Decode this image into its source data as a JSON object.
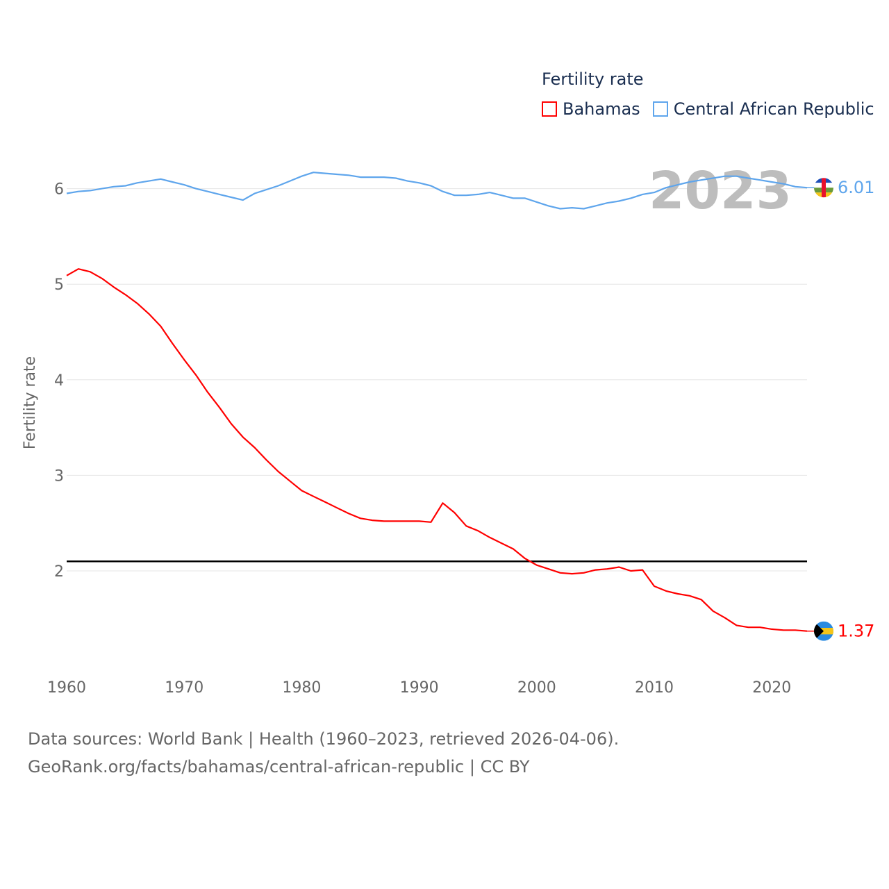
{
  "chart_data": {
    "type": "line",
    "title": "",
    "legend_title": "Fertility rate",
    "legend_position": "top-right",
    "xlabel": "",
    "ylabel": "Fertility rate",
    "xlim": [
      1960,
      2023
    ],
    "ylim": [
      1.3,
      6.3
    ],
    "x_ticks": [
      1960,
      1970,
      1980,
      1990,
      2000,
      2010,
      2020
    ],
    "y_ticks": [
      2,
      3,
      4,
      5,
      6
    ],
    "grid": true,
    "year_label": "2023",
    "reference_line": {
      "value": 2.1,
      "color": "#000000"
    },
    "x_start": 1960,
    "series": [
      {
        "name": "Bahamas",
        "color": "#ff0000",
        "end_label": "1.37",
        "values": [
          5.09,
          5.16,
          5.13,
          5.06,
          4.97,
          4.89,
          4.8,
          4.69,
          4.56,
          4.38,
          4.21,
          4.05,
          3.87,
          3.71,
          3.54,
          3.4,
          3.29,
          3.16,
          3.04,
          2.94,
          2.84,
          2.78,
          2.72,
          2.66,
          2.6,
          2.55,
          2.53,
          2.52,
          2.52,
          2.52,
          2.52,
          2.51,
          2.71,
          2.61,
          2.47,
          2.42,
          2.35,
          2.29,
          2.23,
          2.13,
          2.06,
          2.02,
          1.98,
          1.97,
          1.98,
          2.01,
          2.02,
          2.04,
          2.0,
          2.01,
          1.84,
          1.79,
          1.76,
          1.74,
          1.7,
          1.58,
          1.51,
          1.43,
          1.41,
          1.41,
          1.39,
          1.38,
          1.38,
          1.37
        ]
      },
      {
        "name": "Central African Republic",
        "color": "#5ea5ec",
        "end_label": "6.01",
        "values": [
          5.95,
          5.97,
          5.98,
          6.0,
          6.02,
          6.03,
          6.06,
          6.08,
          6.1,
          6.07,
          6.04,
          6.0,
          5.97,
          5.94,
          5.91,
          5.88,
          5.95,
          5.99,
          6.03,
          6.08,
          6.13,
          6.17,
          6.16,
          6.15,
          6.14,
          6.12,
          6.12,
          6.12,
          6.11,
          6.08,
          6.06,
          6.03,
          5.97,
          5.93,
          5.93,
          5.94,
          5.96,
          5.93,
          5.9,
          5.9,
          5.86,
          5.82,
          5.79,
          5.8,
          5.79,
          5.82,
          5.85,
          5.87,
          5.9,
          5.94,
          5.96,
          6.01,
          6.04,
          6.07,
          6.09,
          6.11,
          6.13,
          6.13,
          6.11,
          6.09,
          6.07,
          6.05,
          6.02,
          6.01
        ]
      }
    ]
  },
  "footer": {
    "line1": "Data sources: World Bank | Health (1960–2023, retrieved 2026-04-06).",
    "line2": "GeoRank.org/facts/bahamas/central-african-republic | CC BY"
  }
}
